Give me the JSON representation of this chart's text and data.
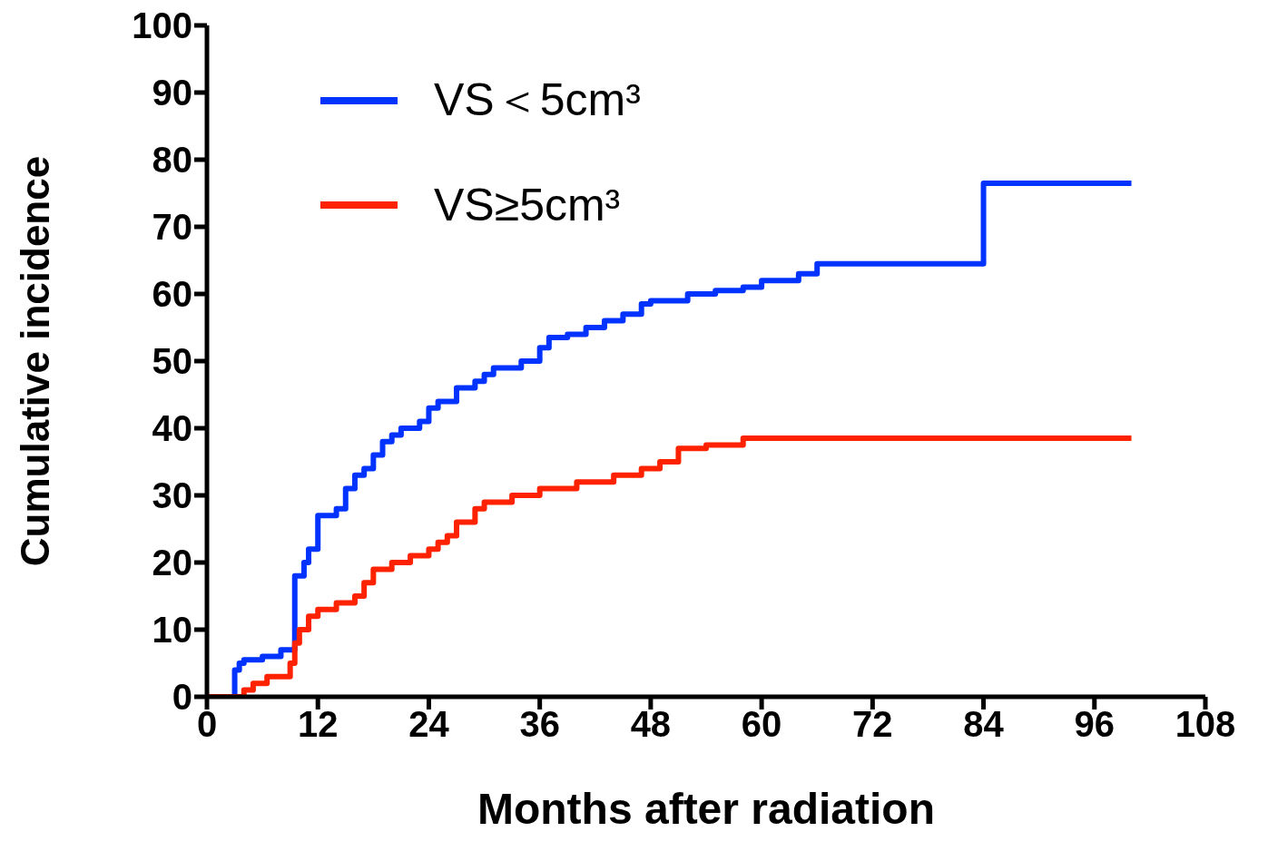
{
  "chart_data": {
    "type": "step",
    "xlabel": "Months after radiation",
    "ylabel": "Cumulative incidence",
    "xlim": [
      0,
      108
    ],
    "xticks": [
      0,
      12,
      24,
      36,
      48,
      60,
      72,
      84,
      96,
      108
    ],
    "ylim": [
      0,
      100
    ],
    "yticks": [
      0,
      10,
      20,
      30,
      40,
      50,
      60,
      70,
      80,
      90,
      100
    ],
    "grid": false,
    "legend": "top left",
    "marker": "none",
    "line_style": "solid",
    "series": [
      {
        "name": "VS＜5cm³",
        "color": "#0033ff",
        "x": [
          0,
          3,
          3.5,
          4,
          6,
          8,
          9.5,
          10.5,
          11,
          12,
          14,
          15,
          16,
          17,
          18,
          19,
          20,
          21,
          23,
          24,
          25,
          27,
          29,
          30,
          31,
          34,
          36,
          37,
          39,
          41,
          43,
          45,
          47,
          48,
          52,
          55,
          58,
          60,
          64,
          66,
          84,
          100
        ],
        "values": [
          0,
          4,
          5,
          5.5,
          6,
          7,
          18,
          20,
          22,
          27,
          28,
          31,
          33,
          34,
          36,
          38,
          39,
          40,
          41,
          43,
          44,
          46,
          47,
          48,
          49,
          50,
          52,
          53.5,
          54,
          55,
          56,
          57,
          58.5,
          59,
          60,
          60.5,
          61,
          62,
          63,
          64.5,
          76.5,
          76.5
        ]
      },
      {
        "name": "VS≥5cm³",
        "color": "#ff2200",
        "x": [
          0,
          4,
          5,
          6.5,
          9,
          9.5,
          10,
          11,
          12,
          14,
          16,
          17,
          18,
          20,
          22,
          24,
          25,
          26,
          27,
          29,
          30,
          33,
          36,
          40,
          44,
          47,
          49,
          51,
          54,
          58,
          100
        ],
        "values": [
          0,
          1,
          2,
          3,
          5,
          8,
          10,
          12,
          13,
          14,
          15,
          17,
          19,
          20,
          21,
          22,
          23,
          24,
          26,
          28,
          29,
          30,
          31,
          32,
          33,
          34,
          35,
          37,
          37.5,
          38.5,
          38.5
        ]
      }
    ]
  }
}
